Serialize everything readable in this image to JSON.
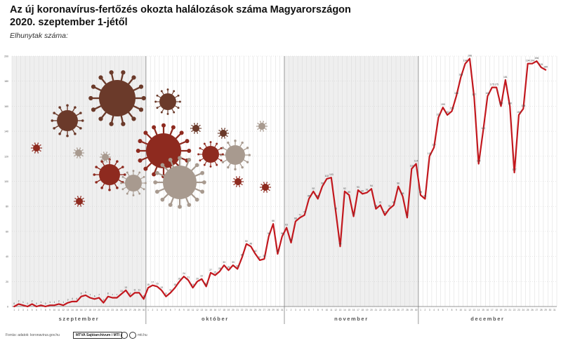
{
  "header": {
    "title_line1": "Az új koronavírus-fertőzés okozta halálozások száma Magyarországon",
    "title_line2": "2020. szeptember 1-jétől",
    "y_caption": "Elhunytak száma:"
  },
  "footer": {
    "source": "Forrás: adatok: koronavirus.gov.hu",
    "agency": "MTVA Sajtóarchívum / MTI",
    "website": "mti.hu"
  },
  "colors": {
    "line": "#c2181e",
    "grid": "#d9d9d9",
    "shade": "#efefef",
    "virus_dark": "#6b3a2a",
    "virus_red": "#8e2a1f",
    "virus_light": "#a89a8f"
  },
  "chart_data": {
    "type": "line",
    "title": "Az új koronavírus-fertőzés okozta halálozások száma Magyarországon",
    "subtitle": "2020. szeptember 1-jétől",
    "ylabel": "Elhunytak száma:",
    "xlabel": "",
    "months": [
      {
        "name": "szeptember",
        "days": 30
      },
      {
        "name": "október",
        "days": 31
      },
      {
        "name": "november",
        "days": 30
      },
      {
        "name": "december",
        "days": 31
      }
    ],
    "ylim": [
      0,
      200
    ],
    "yticks": [
      0,
      20,
      40,
      60,
      80,
      100,
      120,
      140,
      160,
      180,
      200
    ],
    "grid": true,
    "series": [
      {
        "values": [
          0,
          2,
          1,
          0,
          2,
          0,
          1,
          0,
          1,
          1,
          2,
          1,
          3,
          4,
          4,
          8,
          9,
          7,
          6,
          7,
          3,
          8,
          7,
          7,
          10,
          13,
          8,
          11,
          11,
          6,
          15,
          17,
          16,
          13,
          8,
          11,
          15,
          20,
          24,
          21,
          15,
          20,
          22,
          16,
          27,
          25,
          28,
          33,
          29,
          33,
          30,
          39,
          50,
          48,
          42,
          37,
          38,
          56,
          66,
          42,
          56,
          63,
          51,
          68,
          71,
          73,
          86,
          92,
          86,
          96,
          102,
          103,
          76,
          48,
          92,
          89,
          72,
          93,
          90,
          91,
          94,
          78,
          81,
          73,
          78,
          81,
          96,
          88,
          71,
          110,
          114,
          89,
          86,
          120,
          127,
          151,
          159,
          153,
          156,
          168,
          183,
          194,
          198,
          167,
          114,
          140,
          168,
          175,
          175,
          160,
          181,
          160,
          107,
          153,
          158,
          194,
          194,
          196,
          191,
          189
        ]
      }
    ]
  }
}
